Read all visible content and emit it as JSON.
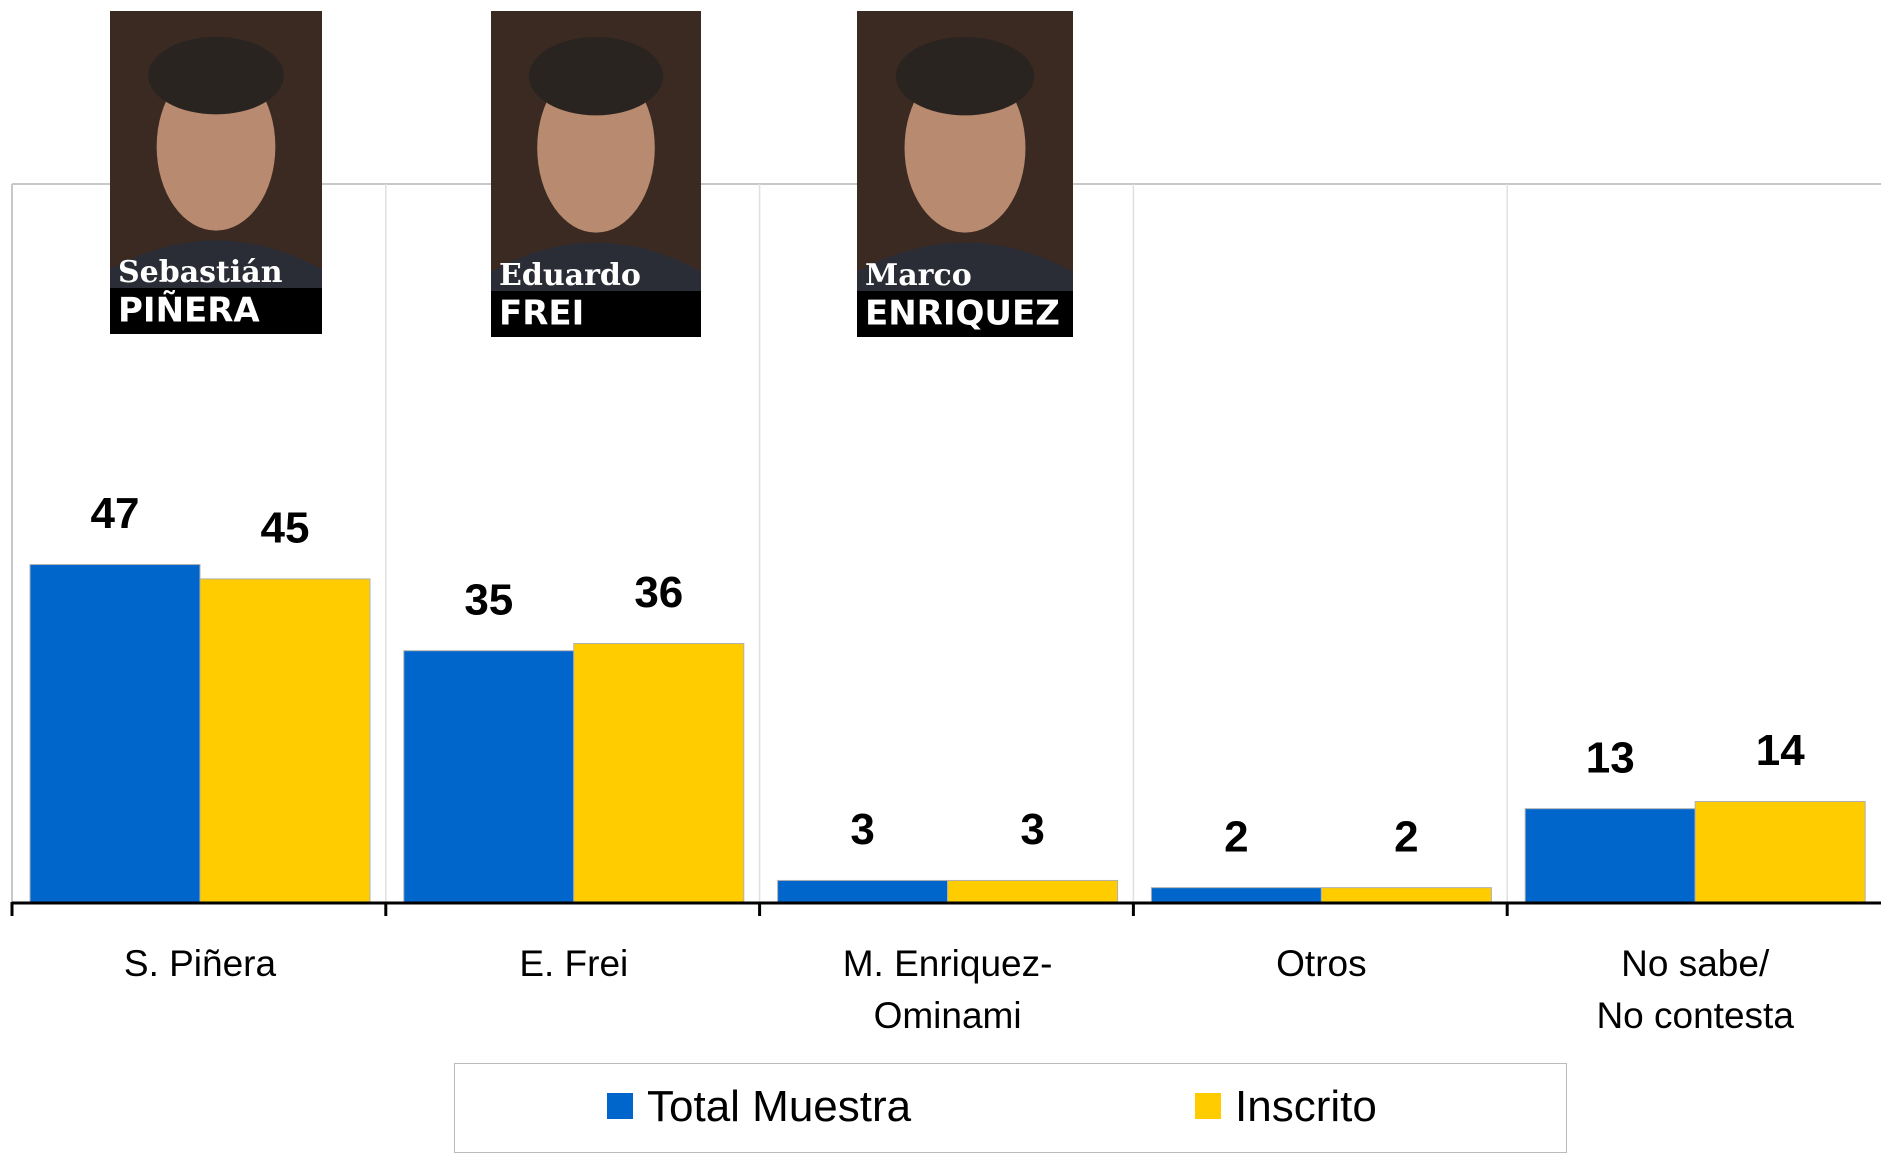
{
  "chart_data": {
    "type": "bar",
    "categories": [
      "S. Piñera",
      "E. Frei",
      "M. Enriquez-\nOminami",
      "Otros",
      "No sabe/\nNo contesta"
    ],
    "series": [
      {
        "name": "Total Muestra",
        "color": "#0066cc",
        "values": [
          47,
          35,
          3,
          2,
          13
        ]
      },
      {
        "name": "Inscrito",
        "color": "#ffcc00",
        "values": [
          45,
          36,
          3,
          2,
          14
        ]
      }
    ],
    "ylim": [
      0,
      100
    ],
    "photos": [
      {
        "first": "Sebastián",
        "last": "PIÑERA"
      },
      {
        "first": "Eduardo",
        "last": "FREI"
      },
      {
        "first": "Marco",
        "last": "ENRIQUEZ"
      }
    ]
  }
}
